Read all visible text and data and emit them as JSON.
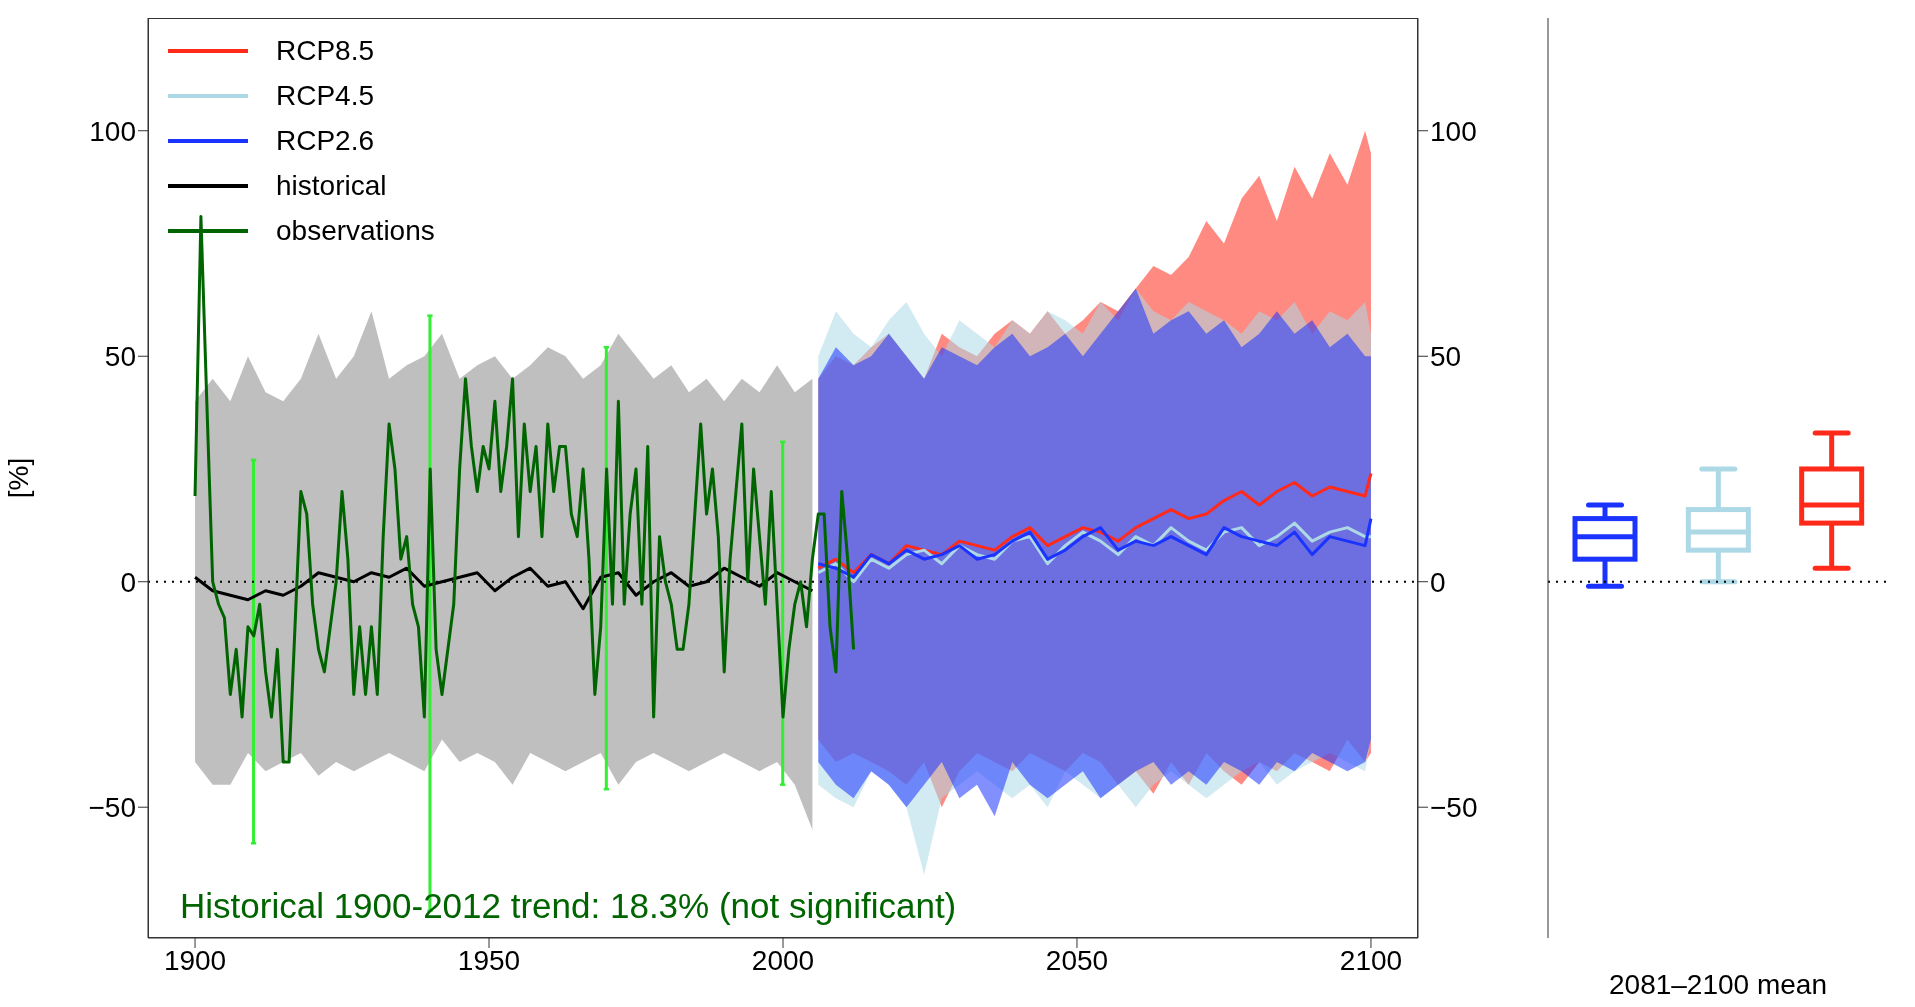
{
  "chart_data": [
    {
      "type": "line",
      "ylabel": "[%]",
      "xlim": [
        1892,
        2108
      ],
      "xticks": [
        1900,
        1950,
        2000,
        2050,
        2100
      ],
      "ylim": [
        -79,
        125
      ],
      "yticks": [
        -50,
        0,
        50,
        100
      ],
      "y2lim": [
        -79,
        125
      ],
      "y2ticks": [
        -50,
        0,
        50,
        100
      ],
      "grid": false,
      "legend": "top left",
      "marker": "none",
      "line_style": "solid",
      "ref_lines": [
        {
          "axis": "y",
          "value": 0,
          "color": "#000000",
          "line_style": "dotted"
        }
      ],
      "annotations": [
        "Historical 1900-2012 trend: 18.3% (not significant)"
      ],
      "series": [
        {
          "name": "RCP8.5",
          "color": "#ff2a1a",
          "x": [
            2006,
            2009,
            2012,
            2015,
            2018,
            2021,
            2024,
            2027,
            2030,
            2033,
            2036,
            2039,
            2042,
            2045,
            2048,
            2051,
            2054,
            2057,
            2060,
            2063,
            2066,
            2069,
            2072,
            2075,
            2078,
            2081,
            2084,
            2087,
            2090,
            2093,
            2096,
            2099,
            2100
          ],
          "values": [
            3,
            5,
            2,
            6,
            4,
            8,
            7,
            6,
            9,
            8,
            7,
            10,
            12,
            8,
            10,
            12,
            11,
            9,
            12,
            14,
            16,
            14,
            15,
            18,
            20,
            17,
            20,
            22,
            19,
            21,
            20,
            19,
            24
          ],
          "lower": [
            -35,
            -40,
            -38,
            -40,
            -42,
            -45,
            -40,
            -50,
            -42,
            -38,
            -40,
            -42,
            -38,
            -40,
            -42,
            -38,
            -40,
            -45,
            -42,
            -47,
            -40,
            -45,
            -38,
            -42,
            -45,
            -40,
            -42,
            -38,
            -40,
            -42,
            -35,
            -40,
            -38
          ],
          "upper": [
            45,
            50,
            48,
            52,
            55,
            50,
            45,
            55,
            52,
            50,
            55,
            58,
            55,
            60,
            55,
            58,
            62,
            60,
            65,
            70,
            68,
            72,
            80,
            75,
            85,
            90,
            80,
            92,
            85,
            95,
            88,
            100,
            95
          ]
        },
        {
          "name": "RCP4.5",
          "color": "#add8e6",
          "x": [
            2006,
            2009,
            2012,
            2015,
            2018,
            2021,
            2024,
            2027,
            2030,
            2033,
            2036,
            2039,
            2042,
            2045,
            2048,
            2051,
            2054,
            2057,
            2060,
            2063,
            2066,
            2069,
            2072,
            2075,
            2078,
            2081,
            2084,
            2087,
            2090,
            2093,
            2096,
            2099,
            2100
          ],
          "values": [
            2,
            4,
            0,
            5,
            3,
            6,
            7,
            4,
            8,
            6,
            5,
            9,
            10,
            4,
            8,
            11,
            9,
            6,
            10,
            8,
            12,
            9,
            7,
            11,
            12,
            8,
            10,
            13,
            9,
            11,
            12,
            10,
            10
          ],
          "lower": [
            -45,
            -48,
            -50,
            -42,
            -45,
            -50,
            -65,
            -48,
            -45,
            -42,
            -45,
            -48,
            -45,
            -50,
            -42,
            -45,
            -48,
            -45,
            -50,
            -45,
            -42,
            -45,
            -48,
            -45,
            -42,
            -40,
            -45,
            -42,
            -40,
            -38,
            -40,
            -42,
            -35
          ],
          "upper": [
            50,
            60,
            55,
            52,
            58,
            62,
            55,
            50,
            58,
            55,
            52,
            58,
            55,
            60,
            58,
            55,
            62,
            58,
            65,
            60,
            58,
            62,
            60,
            58,
            55,
            60,
            58,
            62,
            55,
            60,
            58,
            62,
            55
          ]
        },
        {
          "name": "RCP2.6",
          "color": "#1a33ff",
          "x": [
            2006,
            2009,
            2012,
            2015,
            2018,
            2021,
            2024,
            2027,
            2030,
            2033,
            2036,
            2039,
            2042,
            2045,
            2048,
            2051,
            2054,
            2057,
            2060,
            2063,
            2066,
            2069,
            2072,
            2075,
            2078,
            2081,
            2084,
            2087,
            2090,
            2093,
            2096,
            2099,
            2100
          ],
          "values": [
            4,
            3,
            1,
            6,
            4,
            7,
            5,
            6,
            8,
            5,
            6,
            9,
            11,
            5,
            7,
            10,
            12,
            7,
            9,
            8,
            10,
            8,
            6,
            12,
            10,
            9,
            8,
            11,
            6,
            10,
            9,
            8,
            14
          ],
          "lower": [
            -40,
            -45,
            -48,
            -42,
            -45,
            -50,
            -45,
            -40,
            -48,
            -45,
            -52,
            -40,
            -45,
            -48,
            -45,
            -42,
            -48,
            -45,
            -42,
            -40,
            -45,
            -42,
            -45,
            -40,
            -42,
            -45,
            -40,
            -42,
            -38,
            -40,
            -42,
            -40,
            -35
          ],
          "upper": [
            45,
            52,
            48,
            50,
            55,
            50,
            45,
            52,
            50,
            48,
            52,
            55,
            50,
            52,
            55,
            50,
            55,
            60,
            65,
            55,
            58,
            60,
            55,
            58,
            52,
            55,
            60,
            55,
            58,
            52,
            55,
            50,
            50
          ]
        },
        {
          "name": "historical",
          "color": "#000000",
          "x": [
            1900,
            1903,
            1906,
            1909,
            1912,
            1915,
            1918,
            1921,
            1924,
            1927,
            1930,
            1933,
            1936,
            1939,
            1942,
            1945,
            1948,
            1951,
            1954,
            1957,
            1960,
            1963,
            1966,
            1969,
            1972,
            1975,
            1978,
            1981,
            1984,
            1987,
            1990,
            1993,
            1996,
            1999,
            2002,
            2005
          ],
          "values": [
            1,
            -2,
            -3,
            -4,
            -2,
            -3,
            -1,
            2,
            1,
            0,
            2,
            1,
            3,
            -1,
            0,
            1,
            2,
            -2,
            1,
            3,
            -1,
            0,
            -6,
            1,
            2,
            -3,
            0,
            2,
            -1,
            0,
            3,
            1,
            -1,
            2,
            0,
            -2
          ],
          "lower": [
            -40,
            -45,
            -45,
            -38,
            -42,
            -40,
            -38,
            -43,
            -40,
            -42,
            -40,
            -38,
            -40,
            -42,
            -35,
            -40,
            -38,
            -40,
            -45,
            -38,
            -40,
            -42,
            -40,
            -38,
            -45,
            -40,
            -38,
            -40,
            -42,
            -40,
            -38,
            -40,
            -42,
            -40,
            -45,
            -55
          ],
          "upper": [
            40,
            45,
            40,
            50,
            42,
            40,
            45,
            55,
            45,
            50,
            60,
            45,
            48,
            50,
            55,
            45,
            48,
            50,
            45,
            48,
            52,
            50,
            45,
            48,
            55,
            50,
            45,
            48,
            42,
            45,
            40,
            45,
            42,
            48,
            42,
            45
          ]
        },
        {
          "name": "observations",
          "color": "#006400",
          "x": [
            1900,
            1901,
            1902,
            1903,
            1904,
            1905,
            1906,
            1907,
            1908,
            1909,
            1910,
            1911,
            1912,
            1913,
            1914,
            1915,
            1916,
            1917,
            1918,
            1919,
            1920,
            1921,
            1922,
            1923,
            1924,
            1925,
            1926,
            1927,
            1928,
            1929,
            1930,
            1931,
            1932,
            1933,
            1934,
            1935,
            1936,
            1937,
            1938,
            1939,
            1940,
            1941,
            1942,
            1943,
            1944,
            1945,
            1946,
            1947,
            1948,
            1949,
            1950,
            1951,
            1952,
            1953,
            1954,
            1955,
            1956,
            1957,
            1958,
            1959,
            1960,
            1961,
            1962,
            1963,
            1964,
            1965,
            1966,
            1967,
            1968,
            1969,
            1970,
            1971,
            1972,
            1973,
            1974,
            1975,
            1976,
            1977,
            1978,
            1979,
            1980,
            1981,
            1982,
            1983,
            1984,
            1985,
            1986,
            1987,
            1988,
            1989,
            1990,
            1991,
            1992,
            1993,
            1994,
            1995,
            1996,
            1997,
            1998,
            1999,
            2000,
            2001,
            2002,
            2003,
            2004,
            2005,
            2006,
            2007,
            2008,
            2009,
            2010,
            2011,
            2012
          ],
          "values": [
            19,
            81,
            40,
            0,
            -5,
            -8,
            -25,
            -15,
            -30,
            -10,
            -12,
            -5,
            -20,
            -30,
            -15,
            -40,
            -40,
            -10,
            20,
            15,
            -5,
            -15,
            -20,
            -10,
            0,
            20,
            5,
            -25,
            -10,
            -25,
            -10,
            -25,
            10,
            35,
            25,
            5,
            10,
            -5,
            -10,
            -30,
            25,
            -15,
            -25,
            -15,
            -5,
            25,
            45,
            30,
            20,
            30,
            25,
            40,
            20,
            30,
            45,
            10,
            35,
            20,
            30,
            10,
            35,
            20,
            30,
            30,
            15,
            10,
            25,
            5,
            -25,
            -10,
            25,
            -5,
            40,
            -5,
            15,
            25,
            -5,
            30,
            -30,
            10,
            0,
            -5,
            -15,
            -15,
            -5,
            15,
            35,
            15,
            25,
            10,
            -20,
            5,
            20,
            35,
            0,
            25,
            10,
            -5,
            20,
            -5,
            -30,
            -15,
            -5,
            0,
            -10,
            5,
            15,
            15,
            -10,
            -20,
            20,
            5,
            -15
          ]
        },
        {
          "type": "bar",
          "color": "#33ee33",
          "x": [
            1910,
            1940,
            1970,
            2000
          ],
          "base": [
            -58,
            -73,
            -46,
            -45
          ],
          "values": [
            85,
            132,
            98,
            76
          ]
        }
      ]
    },
    {
      "type": "box",
      "xlabel": "2081–2100 mean",
      "categories": [
        null,
        null,
        null
      ],
      "ylim": [
        -79,
        125
      ],
      "tick_labels": false,
      "grid": false,
      "colors": [
        "#1a33ff",
        "#add8e6",
        "#ff2a1a"
      ],
      "ref_lines": [
        {
          "axis": "y",
          "value": 0,
          "color": "#000000",
          "line_style": "dotted"
        }
      ],
      "boxes": [
        {
          "low": -1,
          "q1": 5,
          "median": 10,
          "q3": 14,
          "high": 17
        },
        {
          "low": 0,
          "q1": 7,
          "median": 11,
          "q3": 16,
          "high": 25
        },
        {
          "low": 3,
          "q1": 13,
          "median": 17,
          "q3": 25,
          "high": 33
        }
      ]
    }
  ]
}
